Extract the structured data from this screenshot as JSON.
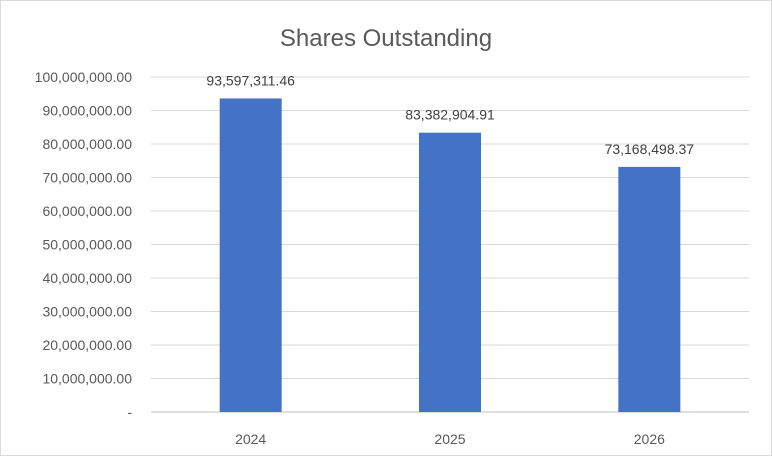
{
  "chart_data": {
    "type": "bar",
    "title": "Shares Outstanding",
    "categories": [
      "2024",
      "2025",
      "2026"
    ],
    "values": [
      93597311.46,
      83382904.91,
      73168498.37
    ],
    "data_labels": [
      "93,597,311.46",
      "83,382,904.91",
      "73,168,498.37"
    ],
    "ylim": [
      0,
      100000000
    ],
    "y_ticks": [
      0,
      10000000,
      20000000,
      30000000,
      40000000,
      50000000,
      60000000,
      70000000,
      80000000,
      90000000,
      100000000
    ],
    "y_tick_labels": [
      "-",
      "10,000,000.00",
      "20,000,000.00",
      "30,000,000.00",
      "40,000,000.00",
      "50,000,000.00",
      "60,000,000.00",
      "70,000,000.00",
      "80,000,000.00",
      "90,000,000.00",
      "100,000,000.00"
    ],
    "grid": true,
    "bar_color": "#4472c4",
    "legend": "none"
  }
}
